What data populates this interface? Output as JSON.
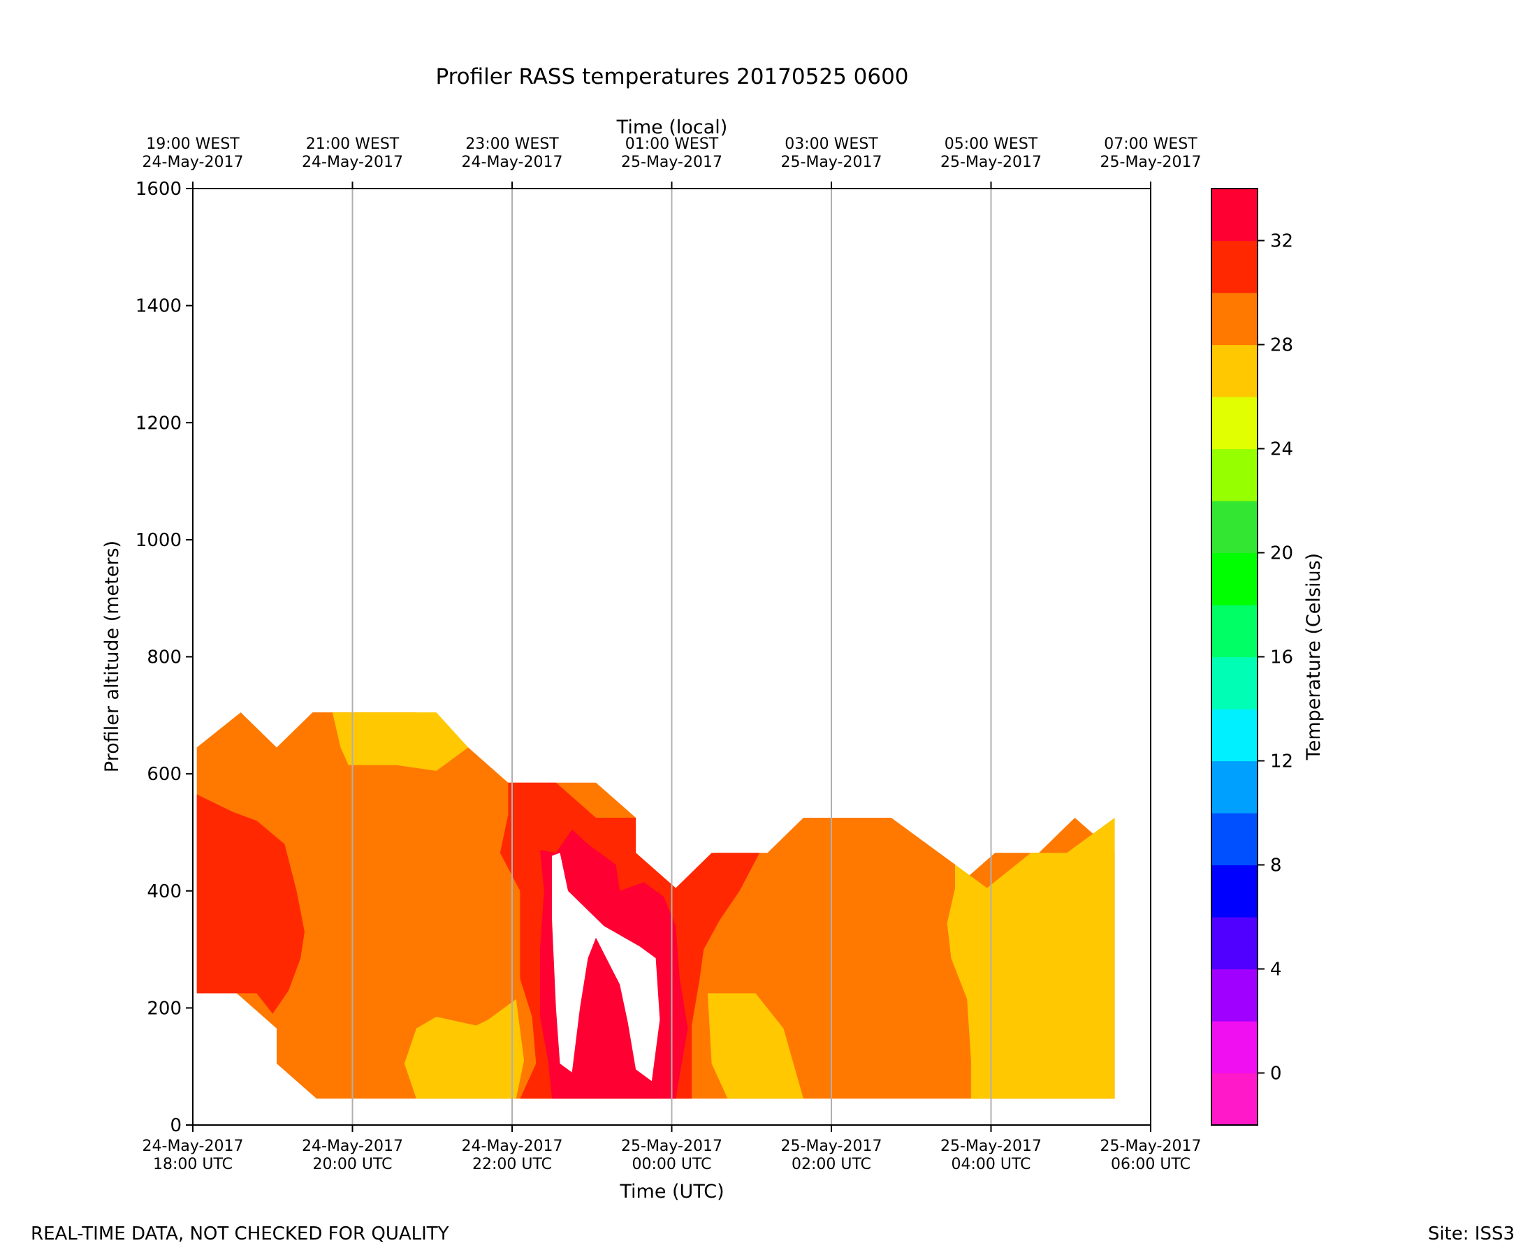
{
  "chart_data": {
    "type": "heatmap",
    "title": "Profiler RASS temperatures 20170525 0600",
    "xlabel": "Time (UTC)",
    "x2label": "Time (local)",
    "ylabel": "Profiler altitude (meters)",
    "colorbar_label": "Temperature (Celsius)",
    "xlim": [
      "2017-05-24 18:00",
      "2017-05-25 06:00"
    ],
    "ylim": [
      0,
      1600
    ],
    "grid": "vertical lines at x ticks",
    "x_ticks": [
      {
        "t": 0,
        "line1": "24-May-2017",
        "line2": "18:00 UTC"
      },
      {
        "t": 2,
        "line1": "24-May-2017",
        "line2": "20:00 UTC"
      },
      {
        "t": 4,
        "line1": "24-May-2017",
        "line2": "22:00 UTC"
      },
      {
        "t": 6,
        "line1": "25-May-2017",
        "line2": "00:00 UTC"
      },
      {
        "t": 8,
        "line1": "25-May-2017",
        "line2": "02:00 UTC"
      },
      {
        "t": 10,
        "line1": "25-May-2017",
        "line2": "04:00 UTC"
      },
      {
        "t": 12,
        "line1": "25-May-2017",
        "line2": "06:00 UTC"
      }
    ],
    "x2_ticks": [
      {
        "t": 0,
        "line1": "19:00 WEST",
        "line2": "24-May-2017"
      },
      {
        "t": 2,
        "line1": "21:00 WEST",
        "line2": "24-May-2017"
      },
      {
        "t": 4,
        "line1": "23:00 WEST",
        "line2": "24-May-2017"
      },
      {
        "t": 6,
        "line1": "01:00 WEST",
        "line2": "25-May-2017"
      },
      {
        "t": 8,
        "line1": "03:00 WEST",
        "line2": "25-May-2017"
      },
      {
        "t": 10,
        "line1": "05:00 WEST",
        "line2": "25-May-2017"
      },
      {
        "t": 12,
        "line1": "07:00 WEST",
        "line2": "25-May-2017"
      }
    ],
    "y_ticks": [
      0,
      200,
      400,
      600,
      800,
      1000,
      1200,
      1400,
      1600
    ],
    "colorbar": {
      "vmin": -2,
      "vmax": 34,
      "ticks": [
        0,
        4,
        8,
        12,
        16,
        20,
        24,
        28,
        32
      ],
      "levels": [
        {
          "from": -2,
          "to": 0,
          "color": "#ff19c8"
        },
        {
          "from": 0,
          "to": 2,
          "color": "#f00ff0"
        },
        {
          "from": 2,
          "to": 4,
          "color": "#a000ff"
        },
        {
          "from": 4,
          "to": 6,
          "color": "#5000ff"
        },
        {
          "from": 6,
          "to": 8,
          "color": "#0000ff"
        },
        {
          "from": 8,
          "to": 10,
          "color": "#0050ff"
        },
        {
          "from": 10,
          "to": 12,
          "color": "#00a0ff"
        },
        {
          "from": 12,
          "to": 14,
          "color": "#00f0ff"
        },
        {
          "from": 14,
          "to": 16,
          "color": "#00ffb4"
        },
        {
          "from": 16,
          "to": 18,
          "color": "#00ff64"
        },
        {
          "from": 18,
          "to": 20,
          "color": "#00ff00"
        },
        {
          "from": 20,
          "to": 22,
          "color": "#32e632"
        },
        {
          "from": 22,
          "to": 24,
          "color": "#96ff00"
        },
        {
          "from": 24,
          "to": 26,
          "color": "#e1ff00"
        },
        {
          "from": 26,
          "to": 28,
          "color": "#ffc800"
        },
        {
          "from": 28,
          "to": 30,
          "color": "#ff7800"
        },
        {
          "from": 30,
          "to": 32,
          "color": "#ff2800"
        },
        {
          "from": 32,
          "to": 34,
          "color": "#ff0032"
        }
      ]
    },
    "regions": [
      {
        "level": "28-30",
        "color": "#ff7800",
        "points": [
          [
            0.05,
            645
          ],
          [
            0.6,
            705
          ],
          [
            1.05,
            645
          ],
          [
            1.5,
            705
          ],
          [
            1.85,
            705
          ],
          [
            2.8,
            705
          ],
          [
            3.45,
            645
          ],
          [
            3.95,
            585
          ],
          [
            4.25,
            585
          ],
          [
            5.05,
            585
          ],
          [
            5.55,
            525
          ],
          [
            5.55,
            465
          ],
          [
            6.05,
            405
          ],
          [
            6.55,
            465
          ],
          [
            7.2,
            465
          ],
          [
            7.65,
            525
          ],
          [
            8.75,
            525
          ],
          [
            9.55,
            445
          ],
          [
            9.55,
            405
          ],
          [
            10.05,
            465
          ],
          [
            10.6,
            465
          ],
          [
            11.05,
            525
          ],
          [
            11.55,
            465
          ],
          [
            11.55,
            45
          ],
          [
            1.55,
            45
          ],
          [
            1.05,
            105
          ],
          [
            1.05,
            165
          ],
          [
            0.55,
            225
          ],
          [
            0.05,
            225
          ]
        ]
      },
      {
        "level": "30-32",
        "color": "#ff2800",
        "points": [
          [
            0.05,
            565
          ],
          [
            0.5,
            535
          ],
          [
            0.8,
            520
          ],
          [
            1.15,
            480
          ],
          [
            1.3,
            400
          ],
          [
            1.4,
            330
          ],
          [
            1.35,
            285
          ],
          [
            1.2,
            230
          ],
          [
            1.0,
            190
          ],
          [
            0.8,
            225
          ],
          [
            0.05,
            225
          ]
        ]
      },
      {
        "level": "30-32",
        "color": "#ff2800",
        "points": [
          [
            3.95,
            585
          ],
          [
            4.55,
            585
          ],
          [
            5.05,
            525
          ],
          [
            5.55,
            525
          ],
          [
            5.55,
            465
          ],
          [
            6.05,
            405
          ],
          [
            6.5,
            465
          ],
          [
            7.1,
            465
          ],
          [
            6.85,
            400
          ],
          [
            6.6,
            350
          ],
          [
            6.4,
            300
          ],
          [
            6.35,
            250
          ],
          [
            6.25,
            170
          ],
          [
            6.25,
            45
          ],
          [
            4.1,
            45
          ],
          [
            4.3,
            105
          ],
          [
            4.25,
            185
          ],
          [
            4.1,
            250
          ],
          [
            4.1,
            400
          ],
          [
            3.85,
            465
          ],
          [
            3.95,
            530
          ]
        ]
      },
      {
        "level": "32-34",
        "color": "#ff0032",
        "points": [
          [
            4.55,
            465
          ],
          [
            4.75,
            505
          ],
          [
            4.95,
            480
          ],
          [
            5.3,
            445
          ],
          [
            5.35,
            400
          ],
          [
            5.65,
            415
          ],
          [
            5.9,
            390
          ],
          [
            6.05,
            340
          ],
          [
            6.1,
            250
          ],
          [
            6.2,
            165
          ],
          [
            6.05,
            45
          ],
          [
            4.5,
            45
          ],
          [
            4.45,
            110
          ],
          [
            4.35,
            185
          ],
          [
            4.35,
            300
          ],
          [
            4.4,
            400
          ],
          [
            4.35,
            470
          ]
        ]
      },
      {
        "level": "26-28",
        "color": "#ffc800",
        "points": [
          [
            1.75,
            705
          ],
          [
            3.05,
            705
          ],
          [
            3.45,
            645
          ],
          [
            3.05,
            605
          ],
          [
            2.55,
            615
          ],
          [
            2.15,
            615
          ],
          [
            1.95,
            615
          ],
          [
            1.85,
            645
          ]
        ]
      },
      {
        "level": "26-28",
        "color": "#ffc800",
        "points": [
          [
            2.8,
            45
          ],
          [
            3.65,
            45
          ],
          [
            4.05,
            45
          ],
          [
            4.15,
            110
          ],
          [
            4.05,
            215
          ],
          [
            3.7,
            180
          ],
          [
            3.55,
            170
          ],
          [
            3.05,
            185
          ],
          [
            2.8,
            165
          ],
          [
            2.65,
            105
          ]
        ]
      },
      {
        "level": "26-28",
        "color": "#ffc800",
        "points": [
          [
            6.45,
            225
          ],
          [
            7.05,
            225
          ],
          [
            7.4,
            165
          ],
          [
            7.65,
            45
          ],
          [
            6.7,
            45
          ],
          [
            6.5,
            105
          ]
        ]
      },
      {
        "level": "26-28",
        "color": "#ffc800",
        "points": [
          [
            9.55,
            445
          ],
          [
            9.95,
            405
          ],
          [
            10.5,
            465
          ],
          [
            10.95,
            465
          ],
          [
            11.55,
            525
          ],
          [
            11.55,
            45
          ],
          [
            9.75,
            45
          ],
          [
            9.75,
            110
          ],
          [
            9.7,
            215
          ],
          [
            9.5,
            285
          ],
          [
            9.45,
            345
          ],
          [
            9.55,
            405
          ]
        ]
      },
      {
        "level": "above 34",
        "color": "#ffffff",
        "points": [
          [
            4.5,
            460
          ],
          [
            4.6,
            465
          ],
          [
            4.7,
            400
          ],
          [
            5.15,
            340
          ],
          [
            5.6,
            305
          ],
          [
            5.8,
            285
          ],
          [
            5.85,
            180
          ],
          [
            5.75,
            75
          ],
          [
            5.55,
            95
          ],
          [
            5.45,
            175
          ],
          [
            5.35,
            240
          ],
          [
            5.05,
            320
          ],
          [
            4.95,
            285
          ],
          [
            4.85,
            200
          ],
          [
            4.75,
            90
          ],
          [
            4.6,
            105
          ],
          [
            4.55,
            200
          ],
          [
            4.5,
            350
          ]
        ]
      },
      {
        "level": "32-34",
        "color": "#ff0032",
        "points": [
          [
            5.1,
            260
          ],
          [
            5.25,
            200
          ],
          [
            5.3,
            130
          ],
          [
            5.2,
            95
          ],
          [
            5.05,
            120
          ],
          [
            4.95,
            165
          ],
          [
            4.95,
            230
          ],
          [
            5.05,
            275
          ]
        ]
      }
    ]
  },
  "footer": {
    "left": "REAL-TIME DATA, NOT CHECKED FOR QUALITY",
    "right": "Site: ISS3"
  }
}
